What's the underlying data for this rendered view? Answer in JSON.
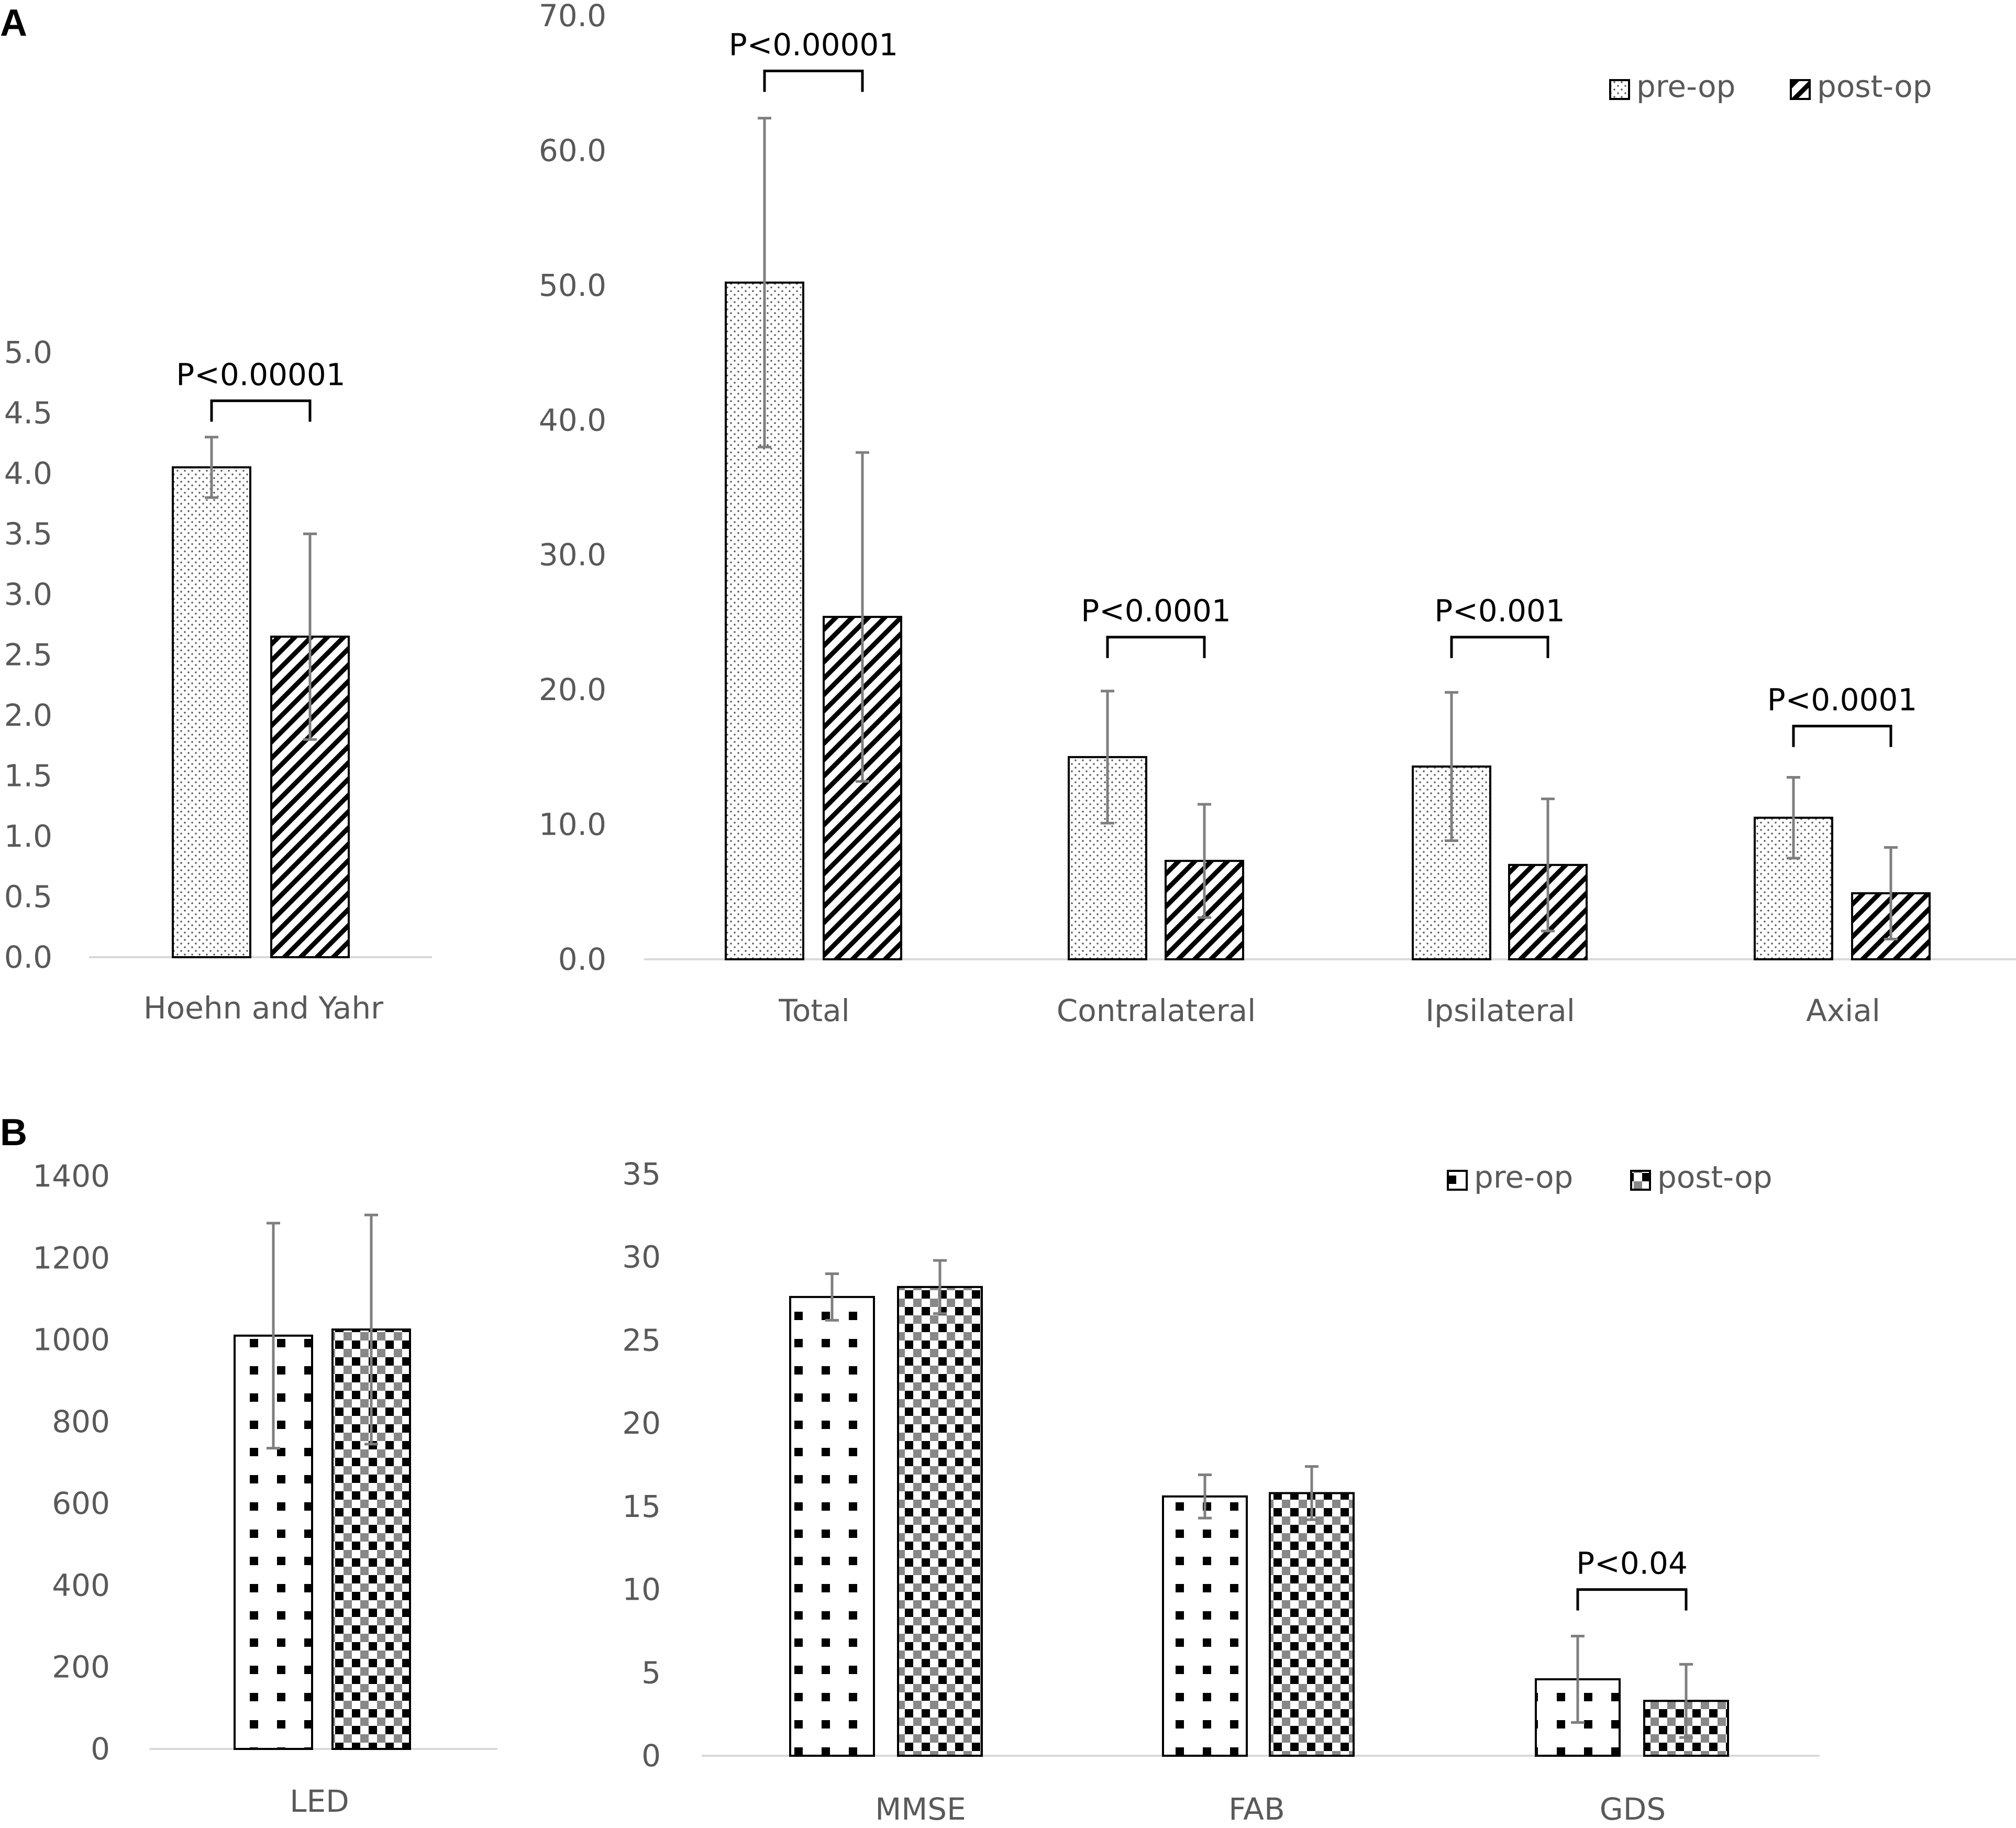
{
  "figure": {
    "panel_labels": [
      "A",
      "B"
    ]
  },
  "colors": {
    "axis": "#d9d9d9",
    "text": "#595959",
    "error_bar": "#7f7f7f",
    "bar_edge": "#000000",
    "bracket": "#000000"
  },
  "chart_data": [
    {
      "id": "hy",
      "panel": "A",
      "type": "bar",
      "categories": [
        "Hoehn and Yahr"
      ],
      "series": [
        {
          "name": "pre-op",
          "pattern": "stipple",
          "values": [
            4.05
          ],
          "errors": [
            0.25
          ]
        },
        {
          "name": "post-op",
          "pattern": "hatch",
          "values": [
            2.65
          ],
          "errors": [
            0.85
          ]
        }
      ],
      "ylim": [
        0,
        5
      ],
      "yticks": [
        "0.0",
        "0.5",
        "1.0",
        "1.5",
        "2.0",
        "2.5",
        "3.0",
        "3.5",
        "4.0",
        "4.5",
        "5.0"
      ],
      "significance": [
        {
          "category": 0,
          "label": "P<0.00001",
          "bracket_y": 4.6
        }
      ],
      "legend": false
    },
    {
      "id": "updrs",
      "panel": "A",
      "type": "bar",
      "categories": [
        "Total",
        "Contralateral",
        "Ipsilateral",
        "Axial"
      ],
      "series": [
        {
          "name": "pre-op",
          "pattern": "stipple",
          "values": [
            50.2,
            15.0,
            14.3,
            10.5
          ],
          "errors": [
            12.2,
            4.9,
            5.5,
            3.0
          ]
        },
        {
          "name": "post-op",
          "pattern": "hatch",
          "values": [
            25.4,
            7.3,
            7.0,
            4.9
          ],
          "errors": [
            12.2,
            4.2,
            4.9,
            3.4
          ]
        }
      ],
      "ylim": [
        0,
        70
      ],
      "yticks": [
        "0.0",
        "10.0",
        "20.0",
        "30.0",
        "40.0",
        "50.0",
        "60.0",
        "70.0"
      ],
      "significance": [
        {
          "category": 0,
          "label": "P<0.00001",
          "bracket_y": 65.9
        },
        {
          "category": 1,
          "label": "P<0.0001",
          "bracket_y": 23.9
        },
        {
          "category": 2,
          "label": "P<0.001",
          "bracket_y": 23.9
        },
        {
          "category": 3,
          "label": "P<0.0001",
          "bracket_y": 17.3
        }
      ],
      "legend": true
    },
    {
      "id": "led",
      "panel": "B",
      "type": "bar",
      "categories": [
        "LED"
      ],
      "series": [
        {
          "name": "pre-op",
          "pattern": "dots",
          "values": [
            1010
          ],
          "errors": [
            275
          ]
        },
        {
          "name": "post-op",
          "pattern": "checker",
          "values": [
            1025
          ],
          "errors": [
            280
          ]
        }
      ],
      "ylim": [
        0,
        1400
      ],
      "yticks": [
        "0",
        "200",
        "400",
        "600",
        "800",
        "1000",
        "1200",
        "1400"
      ],
      "significance": [],
      "legend": false
    },
    {
      "id": "cog",
      "panel": "B",
      "type": "bar",
      "categories": [
        "MMSE",
        "FAB",
        "GDS"
      ],
      "series": [
        {
          "name": "pre-op",
          "pattern": "dots",
          "values": [
            27.6,
            15.6,
            4.6
          ],
          "errors": [
            1.4,
            1.3,
            2.6
          ]
        },
        {
          "name": "post-op",
          "pattern": "checker",
          "values": [
            28.2,
            15.8,
            3.3
          ],
          "errors": [
            1.6,
            1.6,
            2.2
          ]
        }
      ],
      "ylim": [
        0,
        35
      ],
      "yticks": [
        "0",
        "5",
        "10",
        "15",
        "20",
        "25",
        "30",
        "35"
      ],
      "significance": [
        {
          "category": 2,
          "label": "P<0.04",
          "bracket_y": 10
        }
      ],
      "legend": true
    }
  ]
}
